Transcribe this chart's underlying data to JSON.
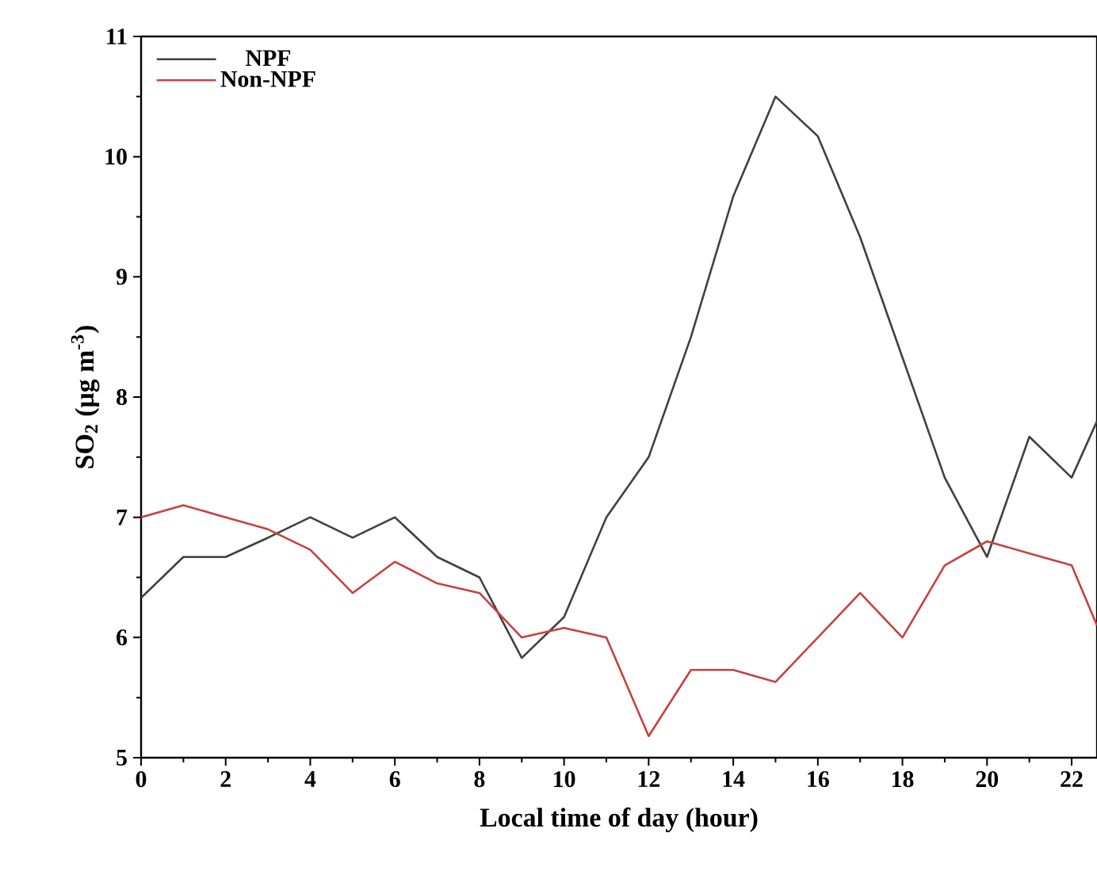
{
  "chart_data": {
    "type": "line",
    "xlabel": "Local time of day (hour)",
    "ylabel": "SO$_{2}$ (μg m$^{-3}$)",
    "x": [
      0,
      1,
      2,
      3,
      4,
      5,
      6,
      7,
      8,
      9,
      10,
      11,
      12,
      13,
      14,
      15,
      16,
      17,
      18,
      19,
      20,
      21,
      22,
      22.6
    ],
    "series": [
      {
        "name": "NPF",
        "color": "#404040",
        "values": [
          6.33,
          6.67,
          6.67,
          6.83,
          7.0,
          6.83,
          7.0,
          6.67,
          6.5,
          5.83,
          6.17,
          7.0,
          7.5,
          8.5,
          9.67,
          10.5,
          10.17,
          9.33,
          8.33,
          7.33,
          6.67,
          7.67,
          7.33,
          7.8
        ]
      },
      {
        "name": "Non-NPF",
        "color": "#c8403f",
        "values": [
          7.0,
          7.1,
          7.0,
          6.9,
          6.73,
          6.37,
          6.63,
          6.45,
          6.37,
          6.0,
          6.08,
          6.0,
          5.18,
          5.73,
          5.73,
          5.63,
          6.0,
          6.37,
          6.0,
          6.6,
          6.8,
          6.7,
          6.6,
          6.1
        ]
      }
    ],
    "xlim": [
      0,
      22.6
    ],
    "xticks": [
      0,
      2,
      4,
      6,
      8,
      10,
      12,
      14,
      16,
      18,
      20,
      22
    ],
    "ylim": [
      5,
      11
    ],
    "yticks": [
      5,
      6,
      7,
      8,
      9,
      10,
      11
    ],
    "legend": "top left",
    "grid": false,
    "marker": "none",
    "line_style": "solid"
  }
}
